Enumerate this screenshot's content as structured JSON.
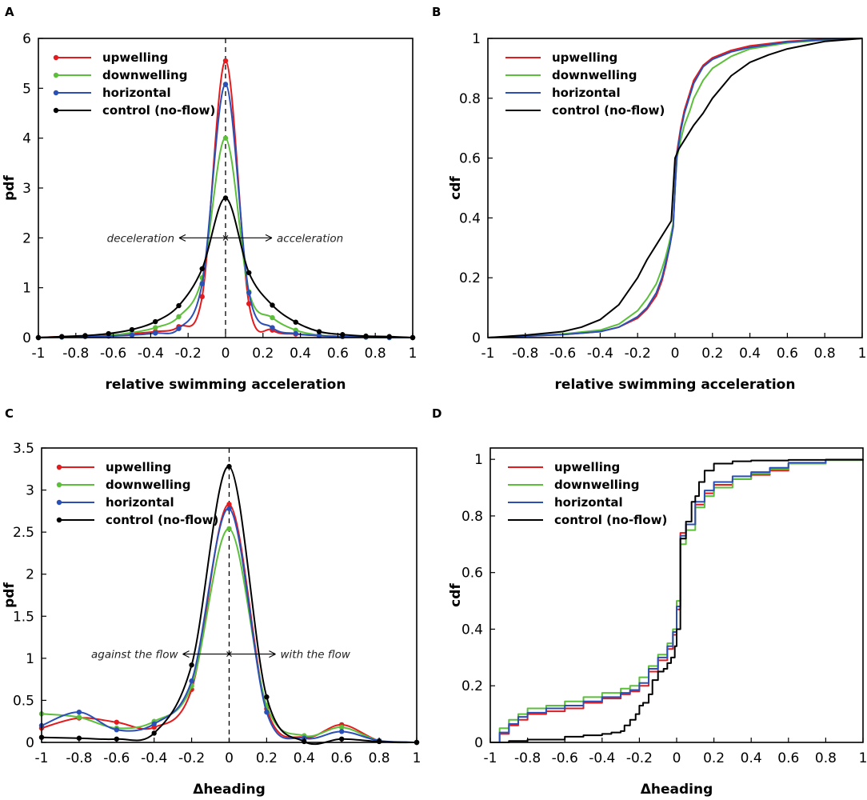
{
  "colors": {
    "upwelling": "#e41a1c",
    "downwelling": "#5cbf3a",
    "horizontal": "#2a50b8",
    "control": "#000000"
  },
  "chart_data": [
    {
      "panel": "A",
      "type": "line",
      "xlabel": "relative swimming acceleration",
      "ylabel": "pdf",
      "xlim": [
        -1,
        1
      ],
      "ylim": [
        0,
        6
      ],
      "xticks": [
        -1,
        -0.8,
        -0.6,
        -0.4,
        -0.2,
        0,
        0.2,
        0.4,
        0.6,
        0.8,
        1
      ],
      "xtick_labels": [
        "-1",
        "-0.8",
        "-0.6",
        "-0.4",
        "-0.2",
        "0",
        "0.2",
        "0.4",
        "0.6",
        "0.8",
        "1"
      ],
      "yticks": [
        0,
        1,
        2,
        3,
        4,
        5,
        6
      ],
      "ytick_labels": [
        "0",
        "1",
        "2",
        "3",
        "4",
        "5",
        "6"
      ],
      "legend": [
        "upwelling",
        "downwelling",
        "horizontal",
        "control (no-flow)"
      ],
      "markers": true,
      "annotations": {
        "left": "deceleration",
        "right": "acceleration",
        "y": 2
      },
      "series": [
        {
          "name": "upwelling",
          "color_key": "upwelling",
          "x": [
            -1,
            -0.875,
            -0.75,
            -0.625,
            -0.5,
            -0.375,
            -0.25,
            -0.125,
            0,
            0.125,
            0.25,
            0.375,
            0.5,
            0.625,
            0.75,
            0.875,
            1
          ],
          "y": [
            0.0,
            0.02,
            0.03,
            0.05,
            0.08,
            0.12,
            0.22,
            0.82,
            5.55,
            0.68,
            0.15,
            0.07,
            0.04,
            0.02,
            0.01,
            0.01,
            0.0
          ]
        },
        {
          "name": "downwelling",
          "color_key": "downwelling",
          "x": [
            -1,
            -0.875,
            -0.75,
            -0.625,
            -0.5,
            -0.375,
            -0.25,
            -0.125,
            0,
            0.125,
            0.25,
            0.375,
            0.5,
            0.625,
            0.75,
            0.875,
            1
          ],
          "y": [
            0.0,
            0.01,
            0.02,
            0.04,
            0.1,
            0.2,
            0.42,
            1.2,
            4.0,
            0.92,
            0.4,
            0.15,
            0.05,
            0.02,
            0.01,
            0.0,
            0.0
          ]
        },
        {
          "name": "horizontal",
          "color_key": "horizontal",
          "x": [
            -1,
            -0.875,
            -0.75,
            -0.625,
            -0.5,
            -0.375,
            -0.25,
            -0.125,
            0,
            0.125,
            0.25,
            0.375,
            0.5,
            0.625,
            0.75,
            0.875,
            1
          ],
          "y": [
            0.0,
            0.01,
            0.02,
            0.03,
            0.05,
            0.09,
            0.18,
            1.08,
            5.08,
            0.9,
            0.2,
            0.08,
            0.04,
            0.02,
            0.01,
            0.0,
            0.0
          ]
        },
        {
          "name": "control (no-flow)",
          "color_key": "control",
          "x": [
            -1,
            -0.875,
            -0.75,
            -0.625,
            -0.5,
            -0.375,
            -0.25,
            -0.125,
            0,
            0.125,
            0.25,
            0.375,
            0.5,
            0.625,
            0.75,
            0.875,
            1
          ],
          "y": [
            0.0,
            0.02,
            0.04,
            0.08,
            0.16,
            0.32,
            0.64,
            1.38,
            2.8,
            1.3,
            0.65,
            0.31,
            0.12,
            0.06,
            0.03,
            0.02,
            0.0
          ]
        }
      ]
    },
    {
      "panel": "B",
      "type": "line",
      "xlabel": "relative swimming acceleration",
      "ylabel": "cdf",
      "xlim": [
        -1,
        1
      ],
      "ylim": [
        0,
        1
      ],
      "xticks": [
        -1,
        -0.8,
        -0.6,
        -0.4,
        -0.2,
        0,
        0.2,
        0.4,
        0.6,
        0.8,
        1
      ],
      "xtick_labels": [
        "-1",
        "-0.8",
        "-0.6",
        "-0.4",
        "-0.2",
        "0",
        "0.2",
        "0.4",
        "0.6",
        "0.8",
        "1"
      ],
      "yticks": [
        0,
        0.2,
        0.4,
        0.6,
        0.8,
        1
      ],
      "ytick_labels": [
        "0",
        "0.2",
        "0.4",
        "0.6",
        "0.8",
        "1"
      ],
      "legend": [
        "upwelling",
        "downwelling",
        "horizontal",
        "control (no-flow)"
      ],
      "markers": false,
      "series": [
        {
          "name": "upwelling",
          "color_key": "upwelling",
          "x": [
            -1,
            -0.8,
            -0.6,
            -0.4,
            -0.3,
            -0.2,
            -0.15,
            -0.1,
            -0.07,
            -0.05,
            -0.03,
            -0.01,
            0,
            0.01,
            0.03,
            0.05,
            0.08,
            0.1,
            0.15,
            0.2,
            0.3,
            0.4,
            0.6,
            0.8,
            1
          ],
          "y": [
            0,
            0.005,
            0.01,
            0.02,
            0.035,
            0.065,
            0.095,
            0.14,
            0.19,
            0.24,
            0.3,
            0.37,
            0.5,
            0.62,
            0.7,
            0.76,
            0.82,
            0.86,
            0.91,
            0.935,
            0.96,
            0.975,
            0.99,
            0.997,
            1
          ]
        },
        {
          "name": "downwelling",
          "color_key": "downwelling",
          "x": [
            -1,
            -0.8,
            -0.6,
            -0.4,
            -0.3,
            -0.2,
            -0.15,
            -0.1,
            -0.07,
            -0.05,
            -0.03,
            -0.01,
            0,
            0.01,
            0.03,
            0.05,
            0.08,
            0.1,
            0.15,
            0.2,
            0.3,
            0.4,
            0.6,
            0.8,
            1
          ],
          "y": [
            0,
            0.005,
            0.012,
            0.025,
            0.045,
            0.09,
            0.13,
            0.18,
            0.23,
            0.27,
            0.32,
            0.38,
            0.5,
            0.6,
            0.66,
            0.71,
            0.76,
            0.8,
            0.86,
            0.9,
            0.94,
            0.965,
            0.985,
            0.995,
            1
          ]
        },
        {
          "name": "horizontal",
          "color_key": "horizontal",
          "x": [
            -1,
            -0.8,
            -0.6,
            -0.4,
            -0.3,
            -0.2,
            -0.15,
            -0.1,
            -0.07,
            -0.05,
            -0.03,
            -0.01,
            0,
            0.01,
            0.03,
            0.05,
            0.08,
            0.1,
            0.15,
            0.2,
            0.3,
            0.4,
            0.6,
            0.8,
            1
          ],
          "y": [
            0,
            0.005,
            0.01,
            0.02,
            0.035,
            0.07,
            0.1,
            0.15,
            0.2,
            0.25,
            0.3,
            0.37,
            0.5,
            0.61,
            0.69,
            0.75,
            0.81,
            0.85,
            0.905,
            0.93,
            0.955,
            0.97,
            0.988,
            0.996,
            1
          ]
        },
        {
          "name": "control (no-flow)",
          "color_key": "control",
          "x": [
            -1,
            -0.8,
            -0.6,
            -0.5,
            -0.4,
            -0.3,
            -0.2,
            -0.15,
            -0.1,
            -0.05,
            -0.02,
            0,
            0.02,
            0.05,
            0.08,
            0.1,
            0.15,
            0.2,
            0.3,
            0.4,
            0.5,
            0.6,
            0.8,
            1
          ],
          "y": [
            0,
            0.008,
            0.02,
            0.035,
            0.06,
            0.11,
            0.2,
            0.26,
            0.31,
            0.36,
            0.39,
            0.6,
            0.63,
            0.66,
            0.69,
            0.71,
            0.75,
            0.8,
            0.875,
            0.92,
            0.945,
            0.965,
            0.99,
            1
          ]
        }
      ]
    },
    {
      "panel": "C",
      "type": "line",
      "xlabel": "Δheading",
      "ylabel": "pdf",
      "xlim": [
        -1,
        1
      ],
      "ylim": [
        0,
        3.5
      ],
      "xticks": [
        -1,
        -0.8,
        -0.6,
        -0.4,
        -0.2,
        0,
        0.2,
        0.4,
        0.6,
        0.8,
        1
      ],
      "xtick_labels": [
        "-1",
        "-0.8",
        "-0.6",
        "-0.4",
        "-0.2",
        "0",
        "0.2",
        "0.4",
        "0.6",
        "0.8",
        "1"
      ],
      "yticks": [
        0,
        0.5,
        1,
        1.5,
        2,
        2.5,
        3,
        3.5
      ],
      "ytick_labels": [
        "0",
        "0.5",
        "1",
        "1.5",
        "2",
        "2.5",
        "3",
        "3.5"
      ],
      "legend": [
        "upwelling",
        "downwelling",
        "horizontal",
        "control (no-flow)"
      ],
      "markers": true,
      "annotations": {
        "left": "against the flow",
        "right": "with the flow",
        "y": 1.05
      },
      "series": [
        {
          "name": "upwelling",
          "color_key": "upwelling",
          "x": [
            -1,
            -0.8,
            -0.6,
            -0.4,
            -0.2,
            0,
            0.2,
            0.4,
            0.6,
            0.8,
            1
          ],
          "y": [
            0.17,
            0.29,
            0.24,
            0.18,
            0.63,
            2.83,
            0.4,
            0.06,
            0.21,
            0.02,
            0.0
          ]
        },
        {
          "name": "downwelling",
          "color_key": "downwelling",
          "x": [
            -1,
            -0.8,
            -0.6,
            -0.4,
            -0.2,
            0,
            0.2,
            0.4,
            0.6,
            0.8,
            1
          ],
          "y": [
            0.34,
            0.3,
            0.17,
            0.25,
            0.67,
            2.54,
            0.44,
            0.08,
            0.18,
            0.02,
            0.0
          ]
        },
        {
          "name": "horizontal",
          "color_key": "horizontal",
          "x": [
            -1,
            -0.8,
            -0.6,
            -0.4,
            -0.2,
            0,
            0.2,
            0.4,
            0.6,
            0.8,
            1
          ],
          "y": [
            0.2,
            0.36,
            0.15,
            0.22,
            0.73,
            2.78,
            0.36,
            0.05,
            0.13,
            0.02,
            0.0
          ]
        },
        {
          "name": "control (no-flow)",
          "color_key": "control",
          "x": [
            -1,
            -0.8,
            -0.6,
            -0.4,
            -0.2,
            0,
            0.2,
            0.4,
            0.6,
            0.8,
            1
          ],
          "y": [
            0.06,
            0.05,
            0.04,
            0.11,
            0.92,
            3.28,
            0.54,
            0.01,
            0.04,
            0.01,
            0.0
          ]
        }
      ]
    },
    {
      "panel": "D",
      "type": "line",
      "xlabel": "Δheading",
      "ylabel": "cdf",
      "xlim": [
        -1,
        1
      ],
      "ylim": [
        0,
        1.04
      ],
      "xticks": [
        -1,
        -0.8,
        -0.6,
        -0.4,
        -0.2,
        0,
        0.2,
        0.4,
        0.6,
        0.8,
        1
      ],
      "xtick_labels": [
        "-1",
        "-0.8",
        "-0.6",
        "-0.4",
        "-0.2",
        "0",
        "0.2",
        "0.4",
        "0.6",
        "0.8",
        "1"
      ],
      "yticks": [
        0,
        0.2,
        0.4,
        0.6,
        0.8,
        1
      ],
      "ytick_labels": [
        "0",
        "0.2",
        "0.4",
        "0.6",
        "0.8",
        "1"
      ],
      "legend": [
        "upwelling",
        "downwelling",
        "horizontal",
        "control (no-flow)"
      ],
      "markers": false,
      "series": [
        {
          "name": "upwelling",
          "color_key": "upwelling",
          "x": [
            -1,
            -0.95,
            -0.9,
            -0.85,
            -0.8,
            -0.7,
            -0.6,
            -0.5,
            -0.4,
            -0.3,
            -0.25,
            -0.2,
            -0.15,
            -0.1,
            -0.05,
            -0.02,
            0,
            0.02,
            0.05,
            0.1,
            0.15,
            0.2,
            0.3,
            0.4,
            0.5,
            0.6,
            0.8,
            1
          ],
          "y": [
            0,
            0.03,
            0.06,
            0.08,
            0.1,
            0.11,
            0.12,
            0.14,
            0.155,
            0.17,
            0.18,
            0.2,
            0.25,
            0.29,
            0.33,
            0.38,
            0.47,
            0.74,
            0.77,
            0.84,
            0.88,
            0.91,
            0.93,
            0.945,
            0.96,
            0.985,
            0.998,
            1
          ]
        },
        {
          "name": "downwelling",
          "color_key": "downwelling",
          "x": [
            -1,
            -0.95,
            -0.9,
            -0.85,
            -0.8,
            -0.7,
            -0.6,
            -0.5,
            -0.4,
            -0.3,
            -0.25,
            -0.2,
            -0.15,
            -0.1,
            -0.05,
            -0.02,
            0,
            0.02,
            0.05,
            0.1,
            0.15,
            0.2,
            0.3,
            0.4,
            0.5,
            0.6,
            0.8,
            1
          ],
          "y": [
            0,
            0.05,
            0.08,
            0.1,
            0.12,
            0.13,
            0.145,
            0.16,
            0.175,
            0.19,
            0.2,
            0.23,
            0.27,
            0.31,
            0.35,
            0.4,
            0.5,
            0.7,
            0.75,
            0.83,
            0.87,
            0.9,
            0.93,
            0.95,
            0.965,
            0.985,
            0.997,
            1
          ]
        },
        {
          "name": "horizontal",
          "color_key": "horizontal",
          "x": [
            -1,
            -0.95,
            -0.9,
            -0.85,
            -0.8,
            -0.7,
            -0.6,
            -0.5,
            -0.4,
            -0.3,
            -0.25,
            -0.2,
            -0.15,
            -0.1,
            -0.05,
            -0.02,
            0,
            0.02,
            0.05,
            0.1,
            0.15,
            0.2,
            0.3,
            0.4,
            0.5,
            0.6,
            0.8,
            1
          ],
          "y": [
            0,
            0.035,
            0.065,
            0.09,
            0.105,
            0.12,
            0.13,
            0.145,
            0.16,
            0.175,
            0.185,
            0.21,
            0.26,
            0.3,
            0.34,
            0.39,
            0.48,
            0.73,
            0.77,
            0.85,
            0.89,
            0.92,
            0.94,
            0.955,
            0.97,
            0.988,
            0.998,
            1
          ]
        },
        {
          "name": "control (no-flow)",
          "color_key": "control",
          "x": [
            -1,
            -0.9,
            -0.8,
            -0.6,
            -0.5,
            -0.4,
            -0.35,
            -0.3,
            -0.28,
            -0.25,
            -0.22,
            -0.2,
            -0.18,
            -0.15,
            -0.13,
            -0.1,
            -0.07,
            -0.05,
            -0.03,
            -0.01,
            0,
            0.02,
            0.05,
            0.08,
            0.1,
            0.12,
            0.15,
            0.2,
            0.3,
            0.4,
            0.6,
            0.8,
            1
          ],
          "y": [
            0,
            0.005,
            0.01,
            0.02,
            0.025,
            0.03,
            0.035,
            0.04,
            0.06,
            0.08,
            0.1,
            0.13,
            0.14,
            0.17,
            0.22,
            0.25,
            0.26,
            0.28,
            0.3,
            0.34,
            0.4,
            0.72,
            0.78,
            0.85,
            0.87,
            0.92,
            0.96,
            0.985,
            0.993,
            0.996,
            0.998,
            0.999,
            1
          ]
        }
      ]
    }
  ]
}
